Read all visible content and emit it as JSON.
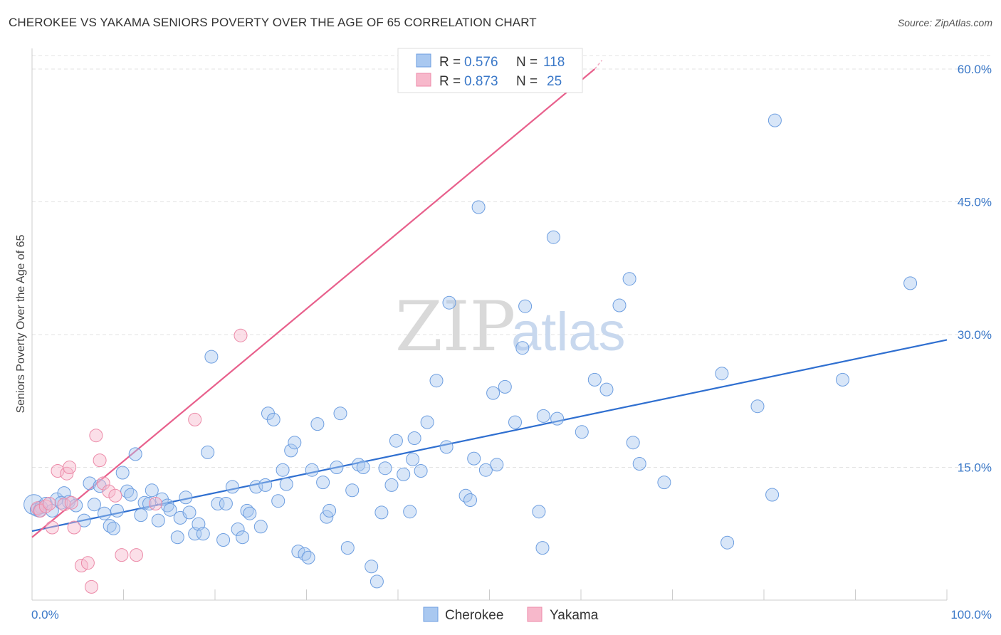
{
  "title": "CHEROKEE VS YAKAMA SENIORS POVERTY OVER THE AGE OF 65 CORRELATION CHART",
  "source": "Source: ZipAtlas.com",
  "watermark": {
    "zip": "ZIP",
    "atlas": "atlas"
  },
  "legend_top": [
    {
      "r_label": "R = ",
      "r_value": "0.576",
      "n_label": "N = ",
      "n_value": "118",
      "color": "#a9c8f0",
      "stroke": "#6d9ee0"
    },
    {
      "r_label": "R = ",
      "r_value": "0.873",
      "n_label": "N = ",
      "n_value": "25",
      "color": "#f7b8cb",
      "stroke": "#ec8aa8"
    }
  ],
  "legend_bottom": [
    {
      "label": "Cherokee",
      "color": "#a9c8f0",
      "stroke": "#6d9ee0"
    },
    {
      "label": "Yakama",
      "color": "#f7b8cb",
      "stroke": "#ec8aa8"
    }
  ],
  "chart_data": {
    "type": "scatter",
    "title": "CHEROKEE VS YAKAMA SENIORS POVERTY OVER THE AGE OF 65 CORRELATION CHART",
    "xlabel": "",
    "ylabel": "Seniors Poverty Over the Age of 65",
    "xlim": [
      0,
      100
    ],
    "ylim": [
      0,
      60
    ],
    "x_tick_labels": [
      "0.0%",
      "100.0%"
    ],
    "y_ticks": [
      15,
      30,
      45,
      60
    ],
    "y_tick_labels": [
      "15.0%",
      "30.0%",
      "45.0%",
      "60.0%"
    ],
    "grid": true,
    "legend_placement": "top-center and bottom",
    "series": [
      {
        "name": "Cherokee",
        "color": "#6d9ee0",
        "fill": "#a9c8f0",
        "trend": {
          "x": [
            0,
            100
          ],
          "y": [
            7.8,
            29.4
          ],
          "color": "#2f6fd0"
        },
        "points": [
          [
            0.2,
            10.8
          ],
          [
            0.5,
            10.2
          ],
          [
            1,
            10.5
          ],
          [
            1.5,
            10.9
          ],
          [
            2.2,
            10.1
          ],
          [
            2.7,
            11.4
          ],
          [
            3.5,
            12.1
          ],
          [
            4,
            11.1
          ],
          [
            4.8,
            10.7
          ],
          [
            5.7,
            9.0
          ],
          [
            6.3,
            13.2
          ],
          [
            6.8,
            10.8
          ],
          [
            7.4,
            12.9
          ],
          [
            7.9,
            9.8
          ],
          [
            8.5,
            8.4
          ],
          [
            8.9,
            8.1
          ],
          [
            9.3,
            10.1
          ],
          [
            9.9,
            14.4
          ],
          [
            10.4,
            12.3
          ],
          [
            10.8,
            11.9
          ],
          [
            11.3,
            16.5
          ],
          [
            11.9,
            9.6
          ],
          [
            12.3,
            11.0
          ],
          [
            12.8,
            10.9
          ],
          [
            13.1,
            12.4
          ],
          [
            13.8,
            9.0
          ],
          [
            14.2,
            11.4
          ],
          [
            14.8,
            10.7
          ],
          [
            15.1,
            10.2
          ],
          [
            15.9,
            7.1
          ],
          [
            16.2,
            9.3
          ],
          [
            16.8,
            11.6
          ],
          [
            17.2,
            9.9
          ],
          [
            17.8,
            7.5
          ],
          [
            18.2,
            8.6
          ],
          [
            18.7,
            7.5
          ],
          [
            19.2,
            16.7
          ],
          [
            19.6,
            27.5
          ],
          [
            20.3,
            10.9
          ],
          [
            20.9,
            6.8
          ],
          [
            21.2,
            10.9
          ],
          [
            21.9,
            12.8
          ],
          [
            22.5,
            8.0
          ],
          [
            23,
            7.1
          ],
          [
            23.5,
            10.1
          ],
          [
            23.8,
            9.8
          ],
          [
            24.5,
            12.8
          ],
          [
            25,
            8.3
          ],
          [
            25.5,
            13.0
          ],
          [
            25.8,
            21.1
          ],
          [
            26.4,
            20.4
          ],
          [
            26.9,
            11.2
          ],
          [
            27.4,
            14.7
          ],
          [
            27.8,
            13.1
          ],
          [
            28.3,
            16.9
          ],
          [
            28.7,
            17.8
          ],
          [
            29.1,
            5.5
          ],
          [
            29.8,
            5.2
          ],
          [
            30.2,
            4.8
          ],
          [
            30.6,
            14.7
          ],
          [
            31.2,
            19.9
          ],
          [
            31.8,
            13.3
          ],
          [
            32.2,
            9.4
          ],
          [
            32.5,
            10.1
          ],
          [
            33.3,
            15.0
          ],
          [
            33.7,
            21.1
          ],
          [
            34.5,
            5.9
          ],
          [
            35,
            12.4
          ],
          [
            35.7,
            15.3
          ],
          [
            36.2,
            15.0
          ],
          [
            37.1,
            3.8
          ],
          [
            37.7,
            2.1
          ],
          [
            38.2,
            9.9
          ],
          [
            38.6,
            14.9
          ],
          [
            39.3,
            13.0
          ],
          [
            39.8,
            18.0
          ],
          [
            40.6,
            14.2
          ],
          [
            41.3,
            10.0
          ],
          [
            41.6,
            15.9
          ],
          [
            41.8,
            18.3
          ],
          [
            42.5,
            14.6
          ],
          [
            43.2,
            20.1
          ],
          [
            44.2,
            24.8
          ],
          [
            45.3,
            17.3
          ],
          [
            45.6,
            33.6
          ],
          [
            47.4,
            11.8
          ],
          [
            47.9,
            11.3
          ],
          [
            48.3,
            16.0
          ],
          [
            48.8,
            44.4
          ],
          [
            49.6,
            14.7
          ],
          [
            50.4,
            23.4
          ],
          [
            50.8,
            15.3
          ],
          [
            51.7,
            24.1
          ],
          [
            52.8,
            20.1
          ],
          [
            53.6,
            28.5
          ],
          [
            53.9,
            33.2
          ],
          [
            55.4,
            10.0
          ],
          [
            55.8,
            5.9
          ],
          [
            55.9,
            20.8
          ],
          [
            57,
            41.0
          ],
          [
            57.4,
            20.5
          ],
          [
            60.1,
            19.0
          ],
          [
            61.5,
            24.9
          ],
          [
            62.8,
            23.8
          ],
          [
            64.2,
            33.3
          ],
          [
            65.3,
            36.3
          ],
          [
            65.7,
            17.8
          ],
          [
            66.4,
            15.4
          ],
          [
            69.1,
            13.3
          ],
          [
            75.4,
            25.6
          ],
          [
            76,
            6.5
          ],
          [
            79.3,
            21.9
          ],
          [
            80.9,
            11.9
          ],
          [
            81.2,
            54.2
          ],
          [
            88.6,
            24.9
          ],
          [
            96,
            35.8
          ],
          [
            0.8,
            10.1
          ],
          [
            3.2,
            11.0
          ]
        ]
      },
      {
        "name": "Yakama",
        "color": "#ec8aa8",
        "fill": "#f7b8cb",
        "trend": {
          "x": [
            0,
            61.5
          ],
          "y": [
            7.1,
            60.0
          ],
          "color": "#e8608c"
        },
        "points": [
          [
            0.6,
            10.4
          ],
          [
            0.9,
            10.1
          ],
          [
            1.5,
            10.6
          ],
          [
            1.9,
            10.9
          ],
          [
            2.2,
            8.2
          ],
          [
            2.8,
            14.6
          ],
          [
            3.5,
            10.8
          ],
          [
            3.8,
            14.3
          ],
          [
            4.1,
            15.0
          ],
          [
            4.3,
            11.0
          ],
          [
            4.6,
            8.2
          ],
          [
            5.4,
            3.9
          ],
          [
            6.1,
            4.2
          ],
          [
            6.5,
            1.5
          ],
          [
            7.0,
            18.6
          ],
          [
            7.4,
            15.8
          ],
          [
            7.8,
            13.2
          ],
          [
            8.4,
            12.3
          ],
          [
            9.1,
            11.8
          ],
          [
            9.8,
            5.1
          ],
          [
            11.4,
            5.1
          ],
          [
            13.5,
            10.9
          ],
          [
            17.8,
            20.4
          ],
          [
            22.8,
            29.9
          ],
          [
            55.6,
            58.8
          ]
        ]
      }
    ]
  }
}
